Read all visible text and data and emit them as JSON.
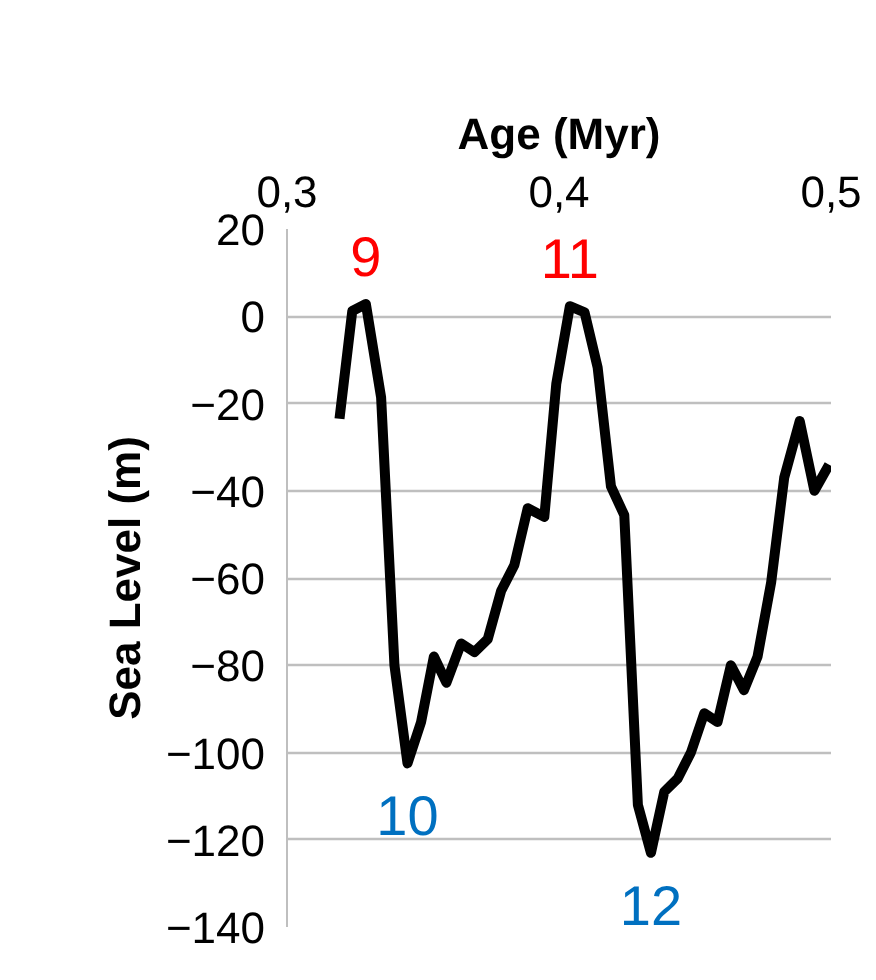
{
  "chart_data": {
    "type": "line",
    "xlabel": "Age (Myr)",
    "ylabel": "Sea Level (m)",
    "x": [
      0.3193,
      0.324,
      0.329,
      0.3346,
      0.3395,
      0.3443,
      0.3493,
      0.354,
      0.3586,
      0.364,
      0.3689,
      0.3738,
      0.3787,
      0.3836,
      0.3885,
      0.3946,
      0.399,
      0.404,
      0.4094,
      0.4142,
      0.4191,
      0.424,
      0.429,
      0.4338,
      0.4387,
      0.4436,
      0.4485,
      0.4534,
      0.4583,
      0.4632,
      0.468,
      0.473,
      0.478,
      0.4828,
      0.4885,
      0.4939,
      0.4993
    ],
    "series": [
      {
        "color": "#000000",
        "values": [
          -23.5,
          1.2,
          2.8,
          -18.6,
          -80,
          -102.5,
          -93,
          -78,
          -84,
          -75,
          -77,
          -74,
          -63,
          -57,
          -44,
          -46,
          -15.5,
          2.3,
          0.9,
          -11.7,
          -39,
          -45.6,
          -112,
          -123,
          -109,
          -106,
          -100,
          -91,
          -93,
          -80,
          -85.7,
          -78,
          -61,
          -37,
          -24,
          -40,
          -34
        ]
      }
    ],
    "xlim": [
      0.3,
      0.5
    ],
    "xticks": [
      {
        "value": 0.3,
        "label": "0,3"
      },
      {
        "value": 0.4,
        "label": "0,4"
      },
      {
        "value": 0.5,
        "label": "0,5"
      }
    ],
    "ylim": [
      -140,
      20
    ],
    "yticks": [
      -140,
      -120,
      -100,
      -80,
      -60,
      -40,
      -20,
      0,
      20
    ],
    "grid": "y",
    "marker": "none",
    "line_style": "solid",
    "annotations": [
      "9",
      "10",
      "11",
      "12"
    ]
  }
}
